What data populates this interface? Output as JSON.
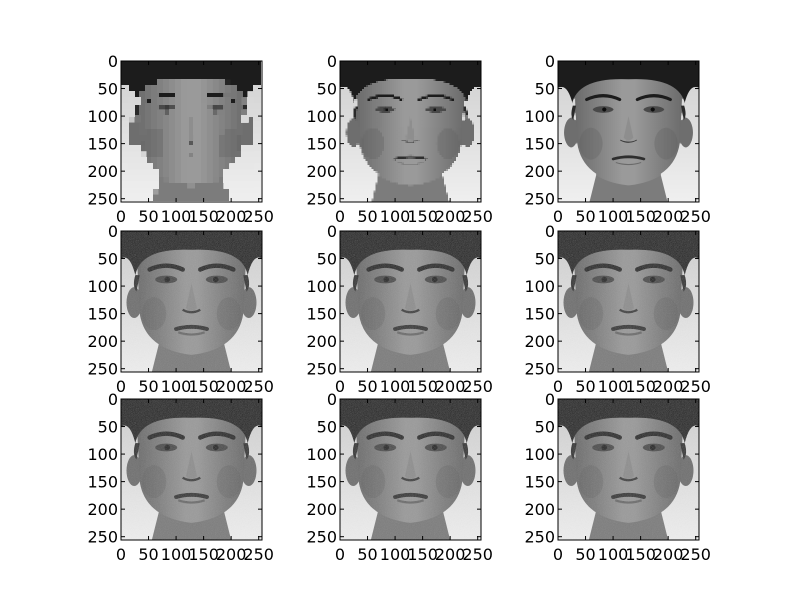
{
  "chart_data": {
    "type": "image-grid",
    "rows": 3,
    "cols": 3,
    "subject": "grayscale frontal face photograph",
    "image_size": [
      256,
      256
    ],
    "panels": [
      {
        "pixelation": 12
      },
      {
        "pixelation": 5
      },
      {
        "pixelation": 2
      },
      {
        "pixelation": 1
      },
      {
        "pixelation": 1
      },
      {
        "pixelation": 1
      },
      {
        "pixelation": 1
      },
      {
        "pixelation": 1
      },
      {
        "pixelation": 1
      }
    ],
    "xticks": [
      "0",
      "50",
      "100",
      "150",
      "200",
      "250"
    ],
    "yticks": [
      "0",
      "50",
      "100",
      "150",
      "200",
      "250"
    ],
    "xlim": [
      0,
      256
    ],
    "ylim": [
      256,
      0
    ],
    "grid": false
  },
  "colors": {
    "background": "#ffffff",
    "axes": "#000000",
    "image_bg": "#d9d9d9",
    "hair": "#1e1e1e",
    "skin": "#8a8a8a",
    "shadow": "#3a3a3a"
  }
}
